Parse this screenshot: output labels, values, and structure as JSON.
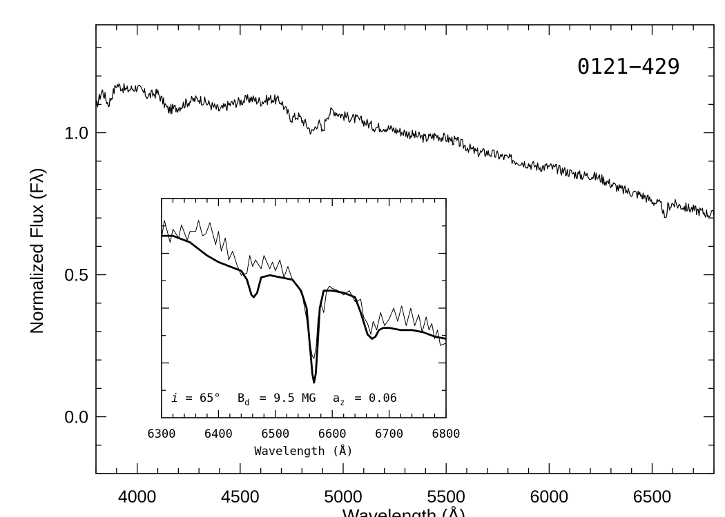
{
  "chart_data": [
    {
      "type": "line",
      "panel": "main",
      "title": "0121−429",
      "xlabel": "Wavelength (Å)",
      "ylabel": "Normalized Flux (Fλ)",
      "xlim": [
        3800,
        6800
      ],
      "ylim": [
        -0.2,
        1.38
      ],
      "xticks": [
        4000,
        4500,
        5000,
        5500,
        6000,
        6500
      ],
      "xtick_labels": [
        "4000",
        "4500",
        "5000",
        "5500",
        "6000",
        "6500"
      ],
      "yticks": [
        0.0,
        0.5,
        1.0
      ],
      "ytick_labels": [
        "0.0",
        "0.5",
        "1.0"
      ],
      "grid": false,
      "series": [
        {
          "x": [
            3800,
            3830,
            3860,
            3900,
            3950,
            4000,
            4050,
            4100,
            4150,
            4200,
            4250,
            4300,
            4350,
            4400,
            4450,
            4500,
            4550,
            4600,
            4650,
            4700,
            4720,
            4750,
            4780,
            4820,
            4850,
            4880,
            4900,
            4920,
            4950,
            4970,
            5000,
            5050,
            5100,
            5150,
            5200,
            5250,
            5300,
            5350,
            5400,
            5450,
            5500,
            5550,
            5600,
            5650,
            5700,
            5750,
            5800,
            5850,
            5900,
            5950,
            6000,
            6050,
            6100,
            6150,
            6200,
            6250,
            6300,
            6350,
            6400,
            6450,
            6500,
            6530,
            6550,
            6563,
            6575,
            6600,
            6650,
            6700,
            6750,
            6800
          ],
          "y": [
            1.09,
            1.15,
            1.1,
            1.17,
            1.15,
            1.16,
            1.13,
            1.14,
            1.08,
            1.09,
            1.11,
            1.12,
            1.1,
            1.08,
            1.1,
            1.11,
            1.12,
            1.11,
            1.12,
            1.11,
            1.08,
            1.05,
            1.06,
            1.03,
            1.0,
            1.04,
            1.0,
            1.06,
            1.08,
            1.07,
            1.06,
            1.05,
            1.04,
            1.02,
            1.02,
            1.01,
            1.0,
            0.99,
            0.98,
            0.99,
            0.98,
            0.97,
            0.95,
            0.93,
            0.93,
            0.92,
            0.91,
            0.9,
            0.89,
            0.88,
            0.88,
            0.87,
            0.86,
            0.85,
            0.85,
            0.84,
            0.82,
            0.8,
            0.79,
            0.78,
            0.76,
            0.75,
            0.74,
            0.68,
            0.74,
            0.75,
            0.74,
            0.73,
            0.72,
            0.71
          ]
        }
      ]
    },
    {
      "type": "line",
      "panel": "inset",
      "xlabel": "Wavelength (Å)",
      "xlim": [
        6300,
        6800
      ],
      "xticks": [
        6300,
        6400,
        6500,
        6600,
        6700,
        6800
      ],
      "xtick_labels": [
        "6300",
        "6400",
        "6500",
        "6600",
        "6700",
        "6800"
      ],
      "ylim": [
        0,
        1
      ],
      "params": {
        "i_symbol": "i",
        "i_value": "= 65°",
        "bd_symbol": "B",
        "bd_sub": "d",
        "bd_value": "= 9.5 MG",
        "az_symbol": "a",
        "az_sub": "z",
        "az_value": "= 0.06"
      },
      "series": [
        {
          "style": "thin",
          "x": [
            6300,
            6305,
            6315,
            6320,
            6330,
            6335,
            6345,
            6350,
            6360,
            6365,
            6372,
            6378,
            6385,
            6395,
            6400,
            6405,
            6412,
            6418,
            6425,
            6432,
            6440,
            6450,
            6455,
            6460,
            6465,
            6475,
            6480,
            6490,
            6495,
            6500,
            6508,
            6515,
            6522,
            6530,
            6540,
            6548,
            6555,
            6560,
            6565,
            6568,
            6572,
            6575,
            6580,
            6585,
            6590,
            6595,
            6600,
            6610,
            6620,
            6630,
            6640,
            6650,
            6655,
            6662,
            6668,
            6672,
            6678,
            6685,
            6692,
            6700,
            6708,
            6715,
            6722,
            6730,
            6738,
            6745,
            6752,
            6758,
            6765,
            6770,
            6775,
            6780,
            6785,
            6790,
            6800
          ],
          "y": [
            0.82,
            0.9,
            0.8,
            0.86,
            0.82,
            0.88,
            0.81,
            0.85,
            0.85,
            0.9,
            0.83,
            0.84,
            0.89,
            0.79,
            0.85,
            0.76,
            0.82,
            0.72,
            0.76,
            0.7,
            0.65,
            0.66,
            0.74,
            0.69,
            0.72,
            0.68,
            0.74,
            0.68,
            0.71,
            0.67,
            0.72,
            0.64,
            0.69,
            0.63,
            0.6,
            0.55,
            0.45,
            0.35,
            0.28,
            0.27,
            0.33,
            0.45,
            0.52,
            0.48,
            0.58,
            0.6,
            0.59,
            0.58,
            0.56,
            0.58,
            0.53,
            0.54,
            0.46,
            0.43,
            0.38,
            0.44,
            0.4,
            0.48,
            0.42,
            0.45,
            0.5,
            0.44,
            0.51,
            0.42,
            0.5,
            0.42,
            0.47,
            0.39,
            0.46,
            0.4,
            0.43,
            0.36,
            0.4,
            0.33,
            0.34
          ]
        },
        {
          "style": "thick",
          "x": [
            6300,
            6320,
            6350,
            6380,
            6400,
            6420,
            6440,
            6450,
            6458,
            6462,
            6468,
            6475,
            6490,
            6510,
            6530,
            6545,
            6555,
            6560,
            6565,
            6568,
            6571,
            6574,
            6578,
            6585,
            6600,
            6620,
            6640,
            6650,
            6662,
            6670,
            6676,
            6682,
            6690,
            6700,
            6720,
            6740,
            6760,
            6780,
            6800
          ],
          "y": [
            0.83,
            0.83,
            0.8,
            0.74,
            0.71,
            0.69,
            0.67,
            0.63,
            0.56,
            0.55,
            0.57,
            0.64,
            0.65,
            0.64,
            0.63,
            0.58,
            0.5,
            0.35,
            0.2,
            0.16,
            0.2,
            0.32,
            0.5,
            0.58,
            0.58,
            0.57,
            0.55,
            0.48,
            0.38,
            0.36,
            0.37,
            0.4,
            0.41,
            0.41,
            0.4,
            0.4,
            0.39,
            0.37,
            0.36
          ]
        }
      ]
    }
  ]
}
